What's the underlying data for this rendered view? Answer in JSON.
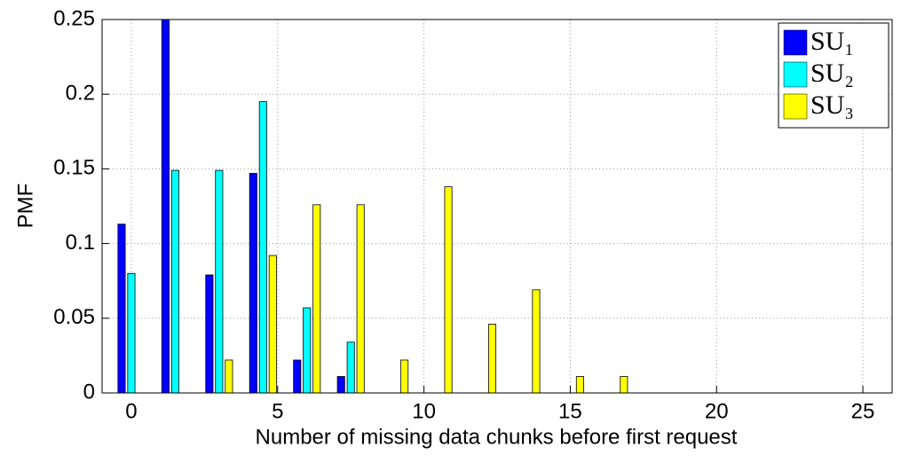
{
  "chart_data": {
    "type": "bar",
    "xlabel": "Number of missing data chunks before first request",
    "ylabel": "PMF",
    "x": [
      0,
      1.5,
      3,
      4.5,
      6,
      7.5,
      9,
      10.5,
      12,
      13.5,
      15,
      16.5
    ],
    "series": [
      {
        "name": "SU₁",
        "color": "#0000ff",
        "values": [
          0.113,
          0.25,
          0.079,
          0.147,
          0.022,
          0.011,
          0,
          0,
          0,
          0,
          0,
          0
        ]
      },
      {
        "name": "SU₂",
        "color": "#00ffff",
        "values": [
          0.08,
          0.149,
          0.149,
          0.195,
          0.057,
          0.034,
          0,
          0,
          0,
          0,
          0,
          0
        ]
      },
      {
        "name": "SU₃",
        "color": "#ffff00",
        "values": [
          0,
          0,
          0.022,
          0.092,
          0.126,
          0.126,
          0.022,
          0.138,
          0.046,
          0.069,
          0.011,
          0.011
        ]
      }
    ],
    "xlim": [
      -1,
      26
    ],
    "xticks": [
      0,
      5,
      10,
      15,
      20,
      25
    ],
    "ylim": [
      0,
      0.25
    ],
    "yticks": [
      0,
      0.05,
      0.1,
      0.15,
      0.2,
      0.25
    ],
    "grid": true,
    "legend": "upper right"
  }
}
